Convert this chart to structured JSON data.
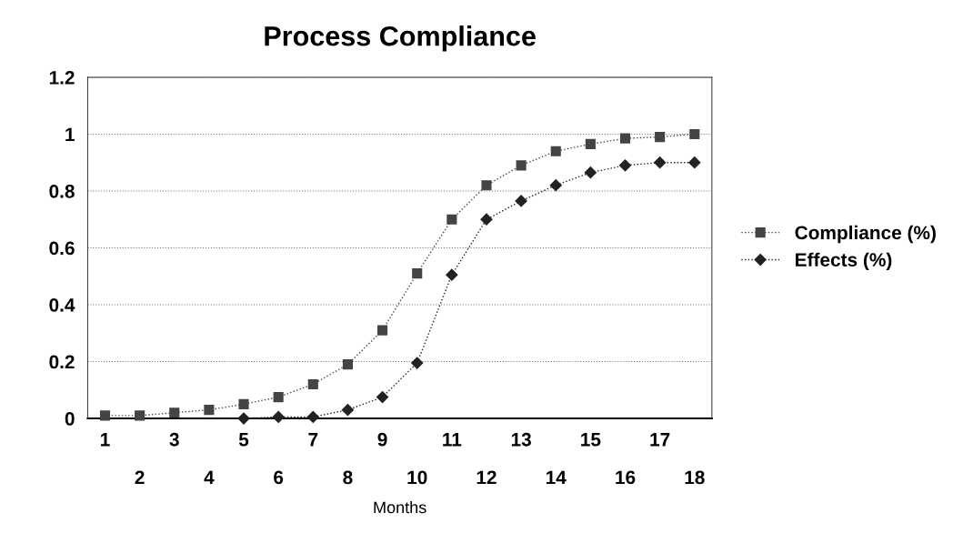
{
  "chart_data": {
    "type": "line",
    "title": "Process Compliance",
    "xlabel": "Months",
    "categories": [
      "1",
      "2",
      "3",
      "4",
      "5",
      "6",
      "7",
      "8",
      "9",
      "10",
      "11",
      "12",
      "13",
      "14",
      "15",
      "16",
      "17",
      "18"
    ],
    "series": [
      {
        "name": "Compliance (%)",
        "color": "#444444",
        "marker": "square",
        "values": [
          0.01,
          0.01,
          0.02,
          0.03,
          0.05,
          0.075,
          0.12,
          0.19,
          0.31,
          0.51,
          0.7,
          0.82,
          0.89,
          0.94,
          0.965,
          0.985,
          0.99,
          1.0
        ]
      },
      {
        "name": "Effects (%)",
        "color": "#222222",
        "marker": "diamond",
        "values": [
          null,
          null,
          null,
          null,
          0,
          0.005,
          0.005,
          0.03,
          0.075,
          0.195,
          0.505,
          0.7,
          0.765,
          0.82,
          0.865,
          0.89,
          0.9,
          0.9
        ]
      }
    ],
    "ylim": [
      0,
      1.2
    ],
    "yticks": [
      0,
      0.2,
      0.4,
      0.6,
      0.8,
      1,
      1.2
    ],
    "grid": "y",
    "legend": "right",
    "line_style": "dotted"
  }
}
